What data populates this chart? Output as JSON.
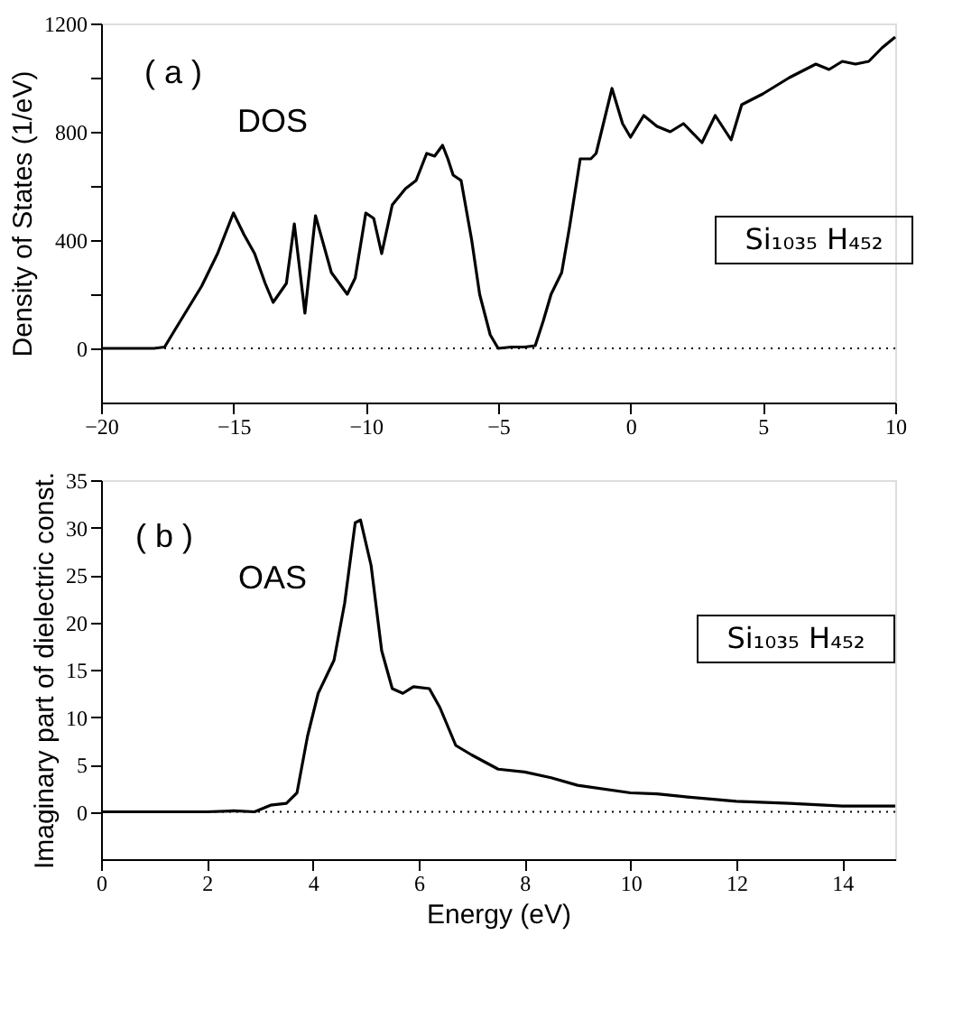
{
  "chart_data": [
    {
      "type": "line",
      "ylabel": "Density of States (1/eV)",
      "x": [
        -20,
        -18,
        -17.6,
        -17.2,
        -16.7,
        -16.2,
        -15.6,
        -15.0,
        -14.6,
        -14.2,
        -13.8,
        -13.5,
        -13.0,
        -12.7,
        -12.3,
        -11.9,
        -11.3,
        -10.7,
        -10.4,
        -10.0,
        -9.7,
        -9.4,
        -9.0,
        -8.5,
        -8.1,
        -7.7,
        -7.4,
        -7.1,
        -6.9,
        -6.7,
        -6.4,
        -6.0,
        -5.7,
        -5.3,
        -5.0,
        -4.5,
        -4.0,
        -3.6,
        -3.3,
        -3.0,
        -2.6,
        -2.3,
        -1.9,
        -1.5,
        -1.3,
        -0.7,
        -0.3,
        0,
        0.5,
        1.0,
        1.5,
        2.0,
        2.7,
        3.2,
        3.8,
        4.2,
        5.0,
        6.0,
        7.0,
        7.5,
        8.0,
        8.5,
        9.0,
        9.5,
        10
      ],
      "series": [
        {
          "color": "#000000",
          "values": [
            0,
            0,
            5,
            70,
            150,
            230,
            350,
            500,
            420,
            350,
            240,
            170,
            240,
            460,
            130,
            490,
            280,
            200,
            260,
            500,
            480,
            350,
            530,
            590,
            620,
            720,
            710,
            750,
            700,
            640,
            620,
            400,
            200,
            50,
            0,
            5,
            5,
            10,
            100,
            200,
            280,
            450,
            700,
            700,
            720,
            960,
            830,
            780,
            860,
            820,
            800,
            830,
            760,
            860,
            770,
            900,
            940,
            1000,
            1050,
            1030,
            1060,
            1050,
            1060,
            1110,
            1150
          ]
        }
      ],
      "xlim": [
        -20,
        10
      ],
      "xticks": [
        -20,
        -15,
        -10,
        -5,
        0,
        5,
        10
      ],
      "ylim": [
        -200,
        1200
      ],
      "yticks": [
        0,
        {
          "value": 200,
          "label": null
        },
        400,
        {
          "value": 600,
          "label": null
        },
        800,
        {
          "value": 1000,
          "label": null
        },
        1200
      ],
      "marker": "none",
      "line_style": "solid",
      "ref_lines": [
        {
          "axis": "y",
          "value": 0,
          "line_style": "dotted",
          "color": "#000000"
        }
      ],
      "annotations": [
        "( a )",
        "DOS",
        "Si₁₀₃₅ H₄₅₂"
      ]
    },
    {
      "type": "line",
      "xlabel": "Energy  (eV)",
      "ylabel": "Imaginary part of dielectric const.",
      "x": [
        0,
        2,
        2.5,
        2.9,
        3.2,
        3.5,
        3.7,
        3.9,
        4.1,
        4.4,
        4.6,
        4.8,
        4.9,
        5.1,
        5.3,
        5.5,
        5.7,
        5.9,
        6.2,
        6.4,
        6.7,
        7.0,
        7.5,
        8.0,
        8.5,
        9.0,
        10,
        10.5,
        11,
        12,
        13,
        14,
        15
      ],
      "series": [
        {
          "color": "#000000",
          "values": [
            0,
            0,
            0.1,
            0,
            0.7,
            0.9,
            2,
            8,
            12.5,
            16,
            22,
            30.5,
            30.8,
            26,
            17,
            13,
            12.5,
            13.2,
            13,
            11,
            7,
            6,
            4.5,
            4.2,
            3.6,
            2.8,
            2.0,
            1.9,
            1.6,
            1.1,
            0.9,
            0.6,
            0.6
          ]
        }
      ],
      "xlim": [
        0,
        15
      ],
      "xticks": [
        0,
        2,
        4,
        6,
        8,
        10,
        12,
        14
      ],
      "ylim": [
        -5,
        35
      ],
      "yticks": [
        0,
        5,
        10,
        15,
        20,
        25,
        30,
        35
      ],
      "marker": "none",
      "line_style": "solid",
      "ref_lines": [
        {
          "axis": "y",
          "value": 0,
          "line_style": "dotted",
          "color": "#000000"
        }
      ],
      "annotations": [
        "( b )",
        "OAS",
        "Si₁₀₃₅ H₄₅₂"
      ]
    }
  ]
}
